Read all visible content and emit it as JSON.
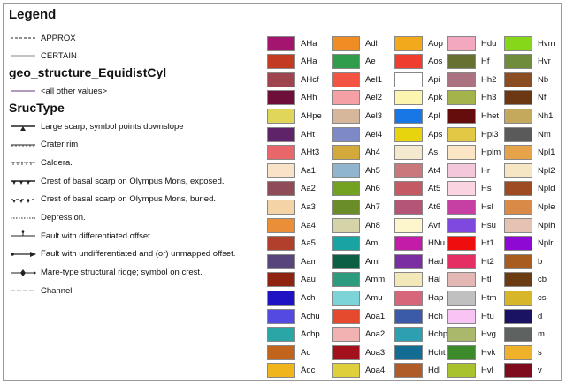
{
  "legend": {
    "title": "Legend",
    "line_items": [
      {
        "label": "APPROX",
        "symbol": "dashed-line-icon"
      },
      {
        "label": "CERTAIN",
        "symbol": "solid-line-icon"
      }
    ],
    "geo_title": "geo_structure_EquidistCyl",
    "geo_items": [
      {
        "label": "<all other values>",
        "symbol": "purple-line-icon",
        "color": "#9a7aa8"
      }
    ],
    "struc_title": "SrucType",
    "struc_items": [
      {
        "label": "Large scarp, symbol points downslope",
        "symbol": "scarp-line-icon"
      },
      {
        "label": "Crater rim",
        "symbol": "crater-rim-line-icon"
      },
      {
        "label": "Caldera.",
        "symbol": "caldera-line-icon"
      },
      {
        "label": "Crest of basal scarp on Olympus Mons, exposed.",
        "symbol": "basal-scarp-exposed-icon"
      },
      {
        "label": "Crest of basal scarp on Olympus Mons, buried.",
        "symbol": "basal-scarp-buried-icon"
      },
      {
        "label": "Depression.",
        "symbol": "depression-line-icon"
      },
      {
        "label": "Fault with differentiated offset.",
        "symbol": "fault-offset-icon"
      },
      {
        "label": "Fault with undifferentiated and (or) unmapped offset.",
        "symbol": "fault-arrow-icon"
      },
      {
        "label": "Mare-type structural ridge; symbol on crest.",
        "symbol": "ridge-diamond-icon"
      },
      {
        "label": "Channel",
        "symbol": "channel-line-icon"
      }
    ],
    "units": [
      [
        {
          "label": "AHa",
          "color": "#a3156e"
        },
        {
          "label": "AHa",
          "color": "#c23b22"
        },
        {
          "label": "AHcf",
          "color": "#9e4550"
        },
        {
          "label": "AHh",
          "color": "#6d0f38"
        },
        {
          "label": "AHpe",
          "color": "#e0d65a"
        },
        {
          "label": "AHt",
          "color": "#5e2368"
        },
        {
          "label": "AHt3",
          "color": "#e8676a"
        },
        {
          "label": "Aa1",
          "color": "#f8e3c8"
        },
        {
          "label": "Aa2",
          "color": "#8f4b57"
        },
        {
          "label": "Aa3",
          "color": "#f4d4a6"
        },
        {
          "label": "Aa4",
          "color": "#ea8f38"
        },
        {
          "label": "Aa5",
          "color": "#b0402c"
        },
        {
          "label": "Aam",
          "color": "#56467c"
        },
        {
          "label": "Aau",
          "color": "#8e2310"
        },
        {
          "label": "Ach",
          "color": "#1f11c4"
        },
        {
          "label": "Achu",
          "color": "#5449e0"
        },
        {
          "label": "Achp",
          "color": "#2aa6a6"
        },
        {
          "label": "Ad",
          "color": "#c2631e"
        },
        {
          "label": "Adc",
          "color": "#f0b51a"
        }
      ],
      [
        {
          "label": "Adl",
          "color": "#f08c24"
        },
        {
          "label": "Ae",
          "color": "#2f9d4a"
        },
        {
          "label": "Ael1",
          "color": "#f25343"
        },
        {
          "label": "Ael2",
          "color": "#f4a0a4"
        },
        {
          "label": "Ael3",
          "color": "#d7b79b"
        },
        {
          "label": "Ael4",
          "color": "#7e8ac8"
        },
        {
          "label": "Ah4",
          "color": "#d4a93c"
        },
        {
          "label": "Ah5",
          "color": "#8fb5cf"
        },
        {
          "label": "Ah6",
          "color": "#73a222"
        },
        {
          "label": "Ah7",
          "color": "#6a8d2a"
        },
        {
          "label": "Ah8",
          "color": "#d4d4a8"
        },
        {
          "label": "Am",
          "color": "#1aa3a3"
        },
        {
          "label": "Aml",
          "color": "#0c5e44"
        },
        {
          "label": "Amm",
          "color": "#2c9b7e"
        },
        {
          "label": "Amu",
          "color": "#7dd4d8"
        },
        {
          "label": "Aoa1",
          "color": "#e64a2e"
        },
        {
          "label": "Aoa2",
          "color": "#f2b2b2"
        },
        {
          "label": "Aoa3",
          "color": "#a3121c"
        },
        {
          "label": "Aoa4",
          "color": "#e0cf3c"
        }
      ],
      [
        {
          "label": "Aop",
          "color": "#f2aa1c"
        },
        {
          "label": "Aos",
          "color": "#ef3e30"
        },
        {
          "label": "Api",
          "color": "#ffffff"
        },
        {
          "label": "Apk",
          "color": "#fbf5b0"
        },
        {
          "label": "Apl",
          "color": "#1877e4"
        },
        {
          "label": "Aps",
          "color": "#e8d40e"
        },
        {
          "label": "As",
          "color": "#f4e8cf"
        },
        {
          "label": "At4",
          "color": "#c9787c"
        },
        {
          "label": "At5",
          "color": "#c35a64"
        },
        {
          "label": "At6",
          "color": "#b45578"
        },
        {
          "label": "Avf",
          "color": "#fdf6cc"
        },
        {
          "label": "HNu",
          "color": "#c21ca8"
        },
        {
          "label": "Had",
          "color": "#7a2ea2"
        },
        {
          "label": "Hal",
          "color": "#f3e8b8"
        },
        {
          "label": "Hap",
          "color": "#d8667a"
        },
        {
          "label": "Hch",
          "color": "#3b5ba9"
        },
        {
          "label": "Hchp",
          "color": "#2c9fb0"
        },
        {
          "label": "Hcht",
          "color": "#136c94"
        },
        {
          "label": "Hdl",
          "color": "#b05c28"
        }
      ],
      [
        {
          "label": "Hdu",
          "color": "#f3a8c0"
        },
        {
          "label": "Hf",
          "color": "#677030"
        },
        {
          "label": "Hh2",
          "color": "#ab727f"
        },
        {
          "label": "Hh3",
          "color": "#a4b44a"
        },
        {
          "label": "Hhet",
          "color": "#650c0c"
        },
        {
          "label": "Hpl3",
          "color": "#e2c844"
        },
        {
          "label": "Hplm",
          "color": "#fae5c4"
        },
        {
          "label": "Hr",
          "color": "#f4c8da"
        },
        {
          "label": "Hs",
          "color": "#fad4e0"
        },
        {
          "label": "Hsl",
          "color": "#c63fa2"
        },
        {
          "label": "Hsu",
          "color": "#7f49e0"
        },
        {
          "label": "Ht1",
          "color": "#ee0e0e"
        },
        {
          "label": "Ht2",
          "color": "#e42e64"
        },
        {
          "label": "Htl",
          "color": "#e3b8b4"
        },
        {
          "label": "Htm",
          "color": "#c0c0c0"
        },
        {
          "label": "Htu",
          "color": "#f8c4f4"
        },
        {
          "label": "Hvg",
          "color": "#aab86c"
        },
        {
          "label": "Hvk",
          "color": "#3d8a2a"
        },
        {
          "label": "Hvl",
          "color": "#a8c22e"
        }
      ],
      [
        {
          "label": "Hvm",
          "color": "#86d61a"
        },
        {
          "label": "Hvr",
          "color": "#6e8c3c"
        },
        {
          "label": "Nb",
          "color": "#8a4e22"
        },
        {
          "label": "Nf",
          "color": "#6c3814"
        },
        {
          "label": "Nh1",
          "color": "#c4a85c"
        },
        {
          "label": "Nm",
          "color": "#5a5a5a"
        },
        {
          "label": "Npl1",
          "color": "#e6a34a"
        },
        {
          "label": "Npl2",
          "color": "#f7e6c4"
        },
        {
          "label": "Npld",
          "color": "#9e4a22"
        },
        {
          "label": "Nple",
          "color": "#d88a46"
        },
        {
          "label": "Nplh",
          "color": "#e6c2b2"
        },
        {
          "label": "Nplr",
          "color": "#8e0ad4"
        },
        {
          "label": "b",
          "color": "#a85c20"
        },
        {
          "label": "cb",
          "color": "#6b3c12"
        },
        {
          "label": "cs",
          "color": "#d8b62a"
        },
        {
          "label": "d",
          "color": "#1a1262"
        },
        {
          "label": "m",
          "color": "#5e6260"
        },
        {
          "label": "s",
          "color": "#f0b12a"
        },
        {
          "label": "v",
          "color": "#7e0c1c"
        }
      ]
    ]
  }
}
